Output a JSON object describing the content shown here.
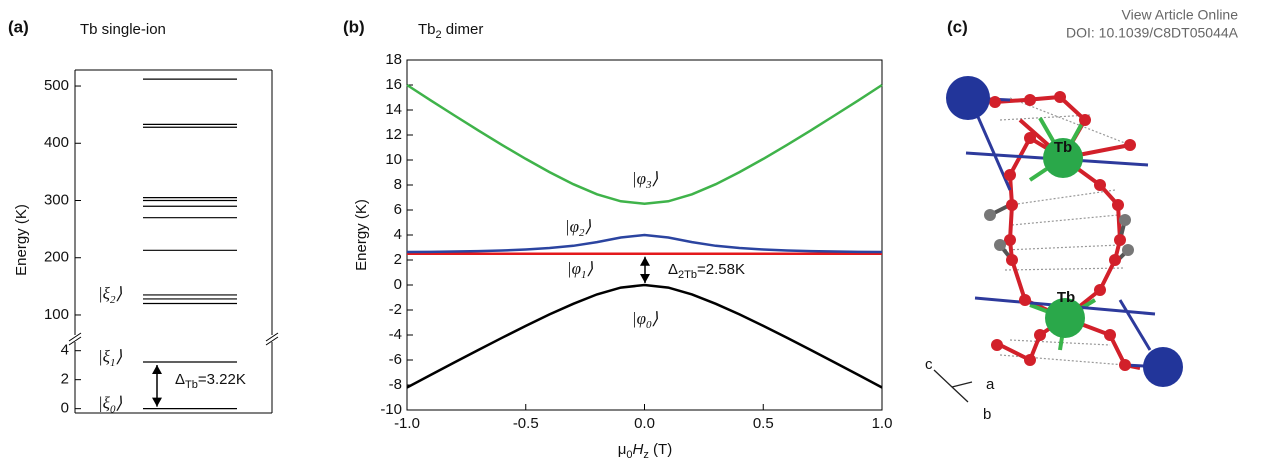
{
  "header": {
    "link": "View Article Online",
    "doi": "DOI: 10.1039/C8DT05044A"
  },
  "chart_data": [
    {
      "type": "levels",
      "panel": "(a)",
      "title": [
        {
          "t": "Tb single-ion"
        }
      ],
      "y_label": "Energy (K)",
      "color": "#000000",
      "levels": [
        0,
        3.22,
        120,
        128,
        135,
        213,
        270,
        290,
        300,
        305,
        428,
        433,
        512
      ],
      "axes": [
        {
          "ylim": [
            -0.3,
            4.6
          ],
          "yticks": [
            0,
            2,
            4
          ]
        },
        {
          "ylim": [
            65,
            528
          ],
          "yticks": [
            100,
            200,
            300,
            400,
            500
          ]
        }
      ],
      "state_labels": [
        [
          {
            "t": "|ξ"
          },
          {
            "t": "0",
            "sub": true
          },
          {
            "t": "⟩"
          }
        ],
        [
          {
            "t": "|ξ"
          },
          {
            "t": "1",
            "sub": true
          },
          {
            "t": "⟩"
          }
        ],
        [
          {
            "t": "|ξ"
          },
          {
            "t": "2",
            "sub": true
          },
          {
            "t": "⟩"
          }
        ]
      ],
      "annotation": [
        {
          "t": "Δ"
        },
        {
          "t": "Tb",
          "sub": true
        },
        {
          "t": "=3.22K"
        }
      ]
    },
    {
      "type": "line",
      "panel": "(b)",
      "title": [
        {
          "t": "Tb"
        },
        {
          "t": "2",
          "sub": true
        },
        {
          "t": " dimer"
        }
      ],
      "y_label": "Energy (K)",
      "x_label": [
        {
          "t": "μ"
        },
        {
          "t": "0",
          "sub": true
        },
        {
          "t": "H",
          "italic": true
        },
        {
          "t": "z",
          "sub": true
        },
        {
          "t": " (T)"
        }
      ],
      "xlim": [
        -1,
        1
      ],
      "ylim": [
        -10,
        18
      ],
      "xticks": [
        {
          "value": -1,
          "label": "-1.0"
        },
        {
          "value": -0.5,
          "label": "-0.5"
        },
        {
          "value": 0,
          "label": "0.0"
        },
        {
          "value": 0.5,
          "label": "0.5"
        },
        {
          "value": 1,
          "label": "1.0"
        }
      ],
      "yticks": [
        -10,
        -8,
        -6,
        -4,
        -2,
        0,
        2,
        4,
        6,
        8,
        10,
        12,
        14,
        16,
        18
      ],
      "x": [
        -1,
        -0.9,
        -0.8,
        -0.7,
        -0.6,
        -0.5,
        -0.4,
        -0.3,
        -0.2,
        -0.1,
        0,
        0.1,
        0.2,
        0.3,
        0.4,
        0.5,
        0.6,
        0.7,
        0.8,
        0.9,
        1
      ],
      "series": [
        {
          "color": "#000000",
          "label": [
            {
              "t": "|φ"
            },
            {
              "t": "0",
              "sub": true
            },
            {
              "t": "⟩"
            }
          ],
          "values": [
            -8.2,
            -7.19,
            -6.19,
            -5.2,
            -4.22,
            -3.27,
            -2.35,
            -1.5,
            -0.75,
            -0.21,
            0,
            -0.21,
            -0.75,
            -1.5,
            -2.35,
            -3.27,
            -4.22,
            -5.2,
            -6.19,
            -7.19,
            -8.2
          ]
        },
        {
          "color": "#e3191c",
          "label": [
            {
              "t": "|φ"
            },
            {
              "t": "1",
              "sub": true
            },
            {
              "t": "⟩"
            }
          ],
          "values": [
            2.5,
            2.5,
            2.5,
            2.5,
            2.5,
            2.5,
            2.5,
            2.5,
            2.5,
            2.5,
            2.5,
            2.5,
            2.5,
            2.5,
            2.5,
            2.5,
            2.5,
            2.5,
            2.5,
            2.5,
            2.5
          ]
        },
        {
          "color": "#2b44a0",
          "label": [
            {
              "t": "|φ"
            },
            {
              "t": "2",
              "sub": true
            },
            {
              "t": "⟩"
            }
          ],
          "values": [
            2.64,
            2.65,
            2.68,
            2.71,
            2.76,
            2.84,
            2.96,
            3.14,
            3.43,
            3.8,
            4.0,
            3.8,
            3.43,
            3.14,
            2.96,
            2.84,
            2.76,
            2.71,
            2.68,
            2.65,
            2.64
          ]
        },
        {
          "color": "#3fb34a",
          "label": [
            {
              "t": "|φ"
            },
            {
              "t": "3",
              "sub": true
            },
            {
              "t": "⟩"
            }
          ],
          "values": [
            16.0,
            14.77,
            13.56,
            12.37,
            11.21,
            10.09,
            9.03,
            8.06,
            7.26,
            6.7,
            6.5,
            6.7,
            7.26,
            8.06,
            9.03,
            10.09,
            11.21,
            12.37,
            13.56,
            14.77,
            16.0
          ]
        }
      ],
      "annotation": [
        {
          "t": "Δ"
        },
        {
          "t": "2Tb",
          "sub": true
        },
        {
          "t": "=2.58K"
        }
      ]
    }
  ],
  "panel_c": {
    "label": "(c)",
    "atom_labels": [
      "Tb",
      "Tb"
    ],
    "axes": [
      "c",
      "a",
      "b"
    ]
  }
}
